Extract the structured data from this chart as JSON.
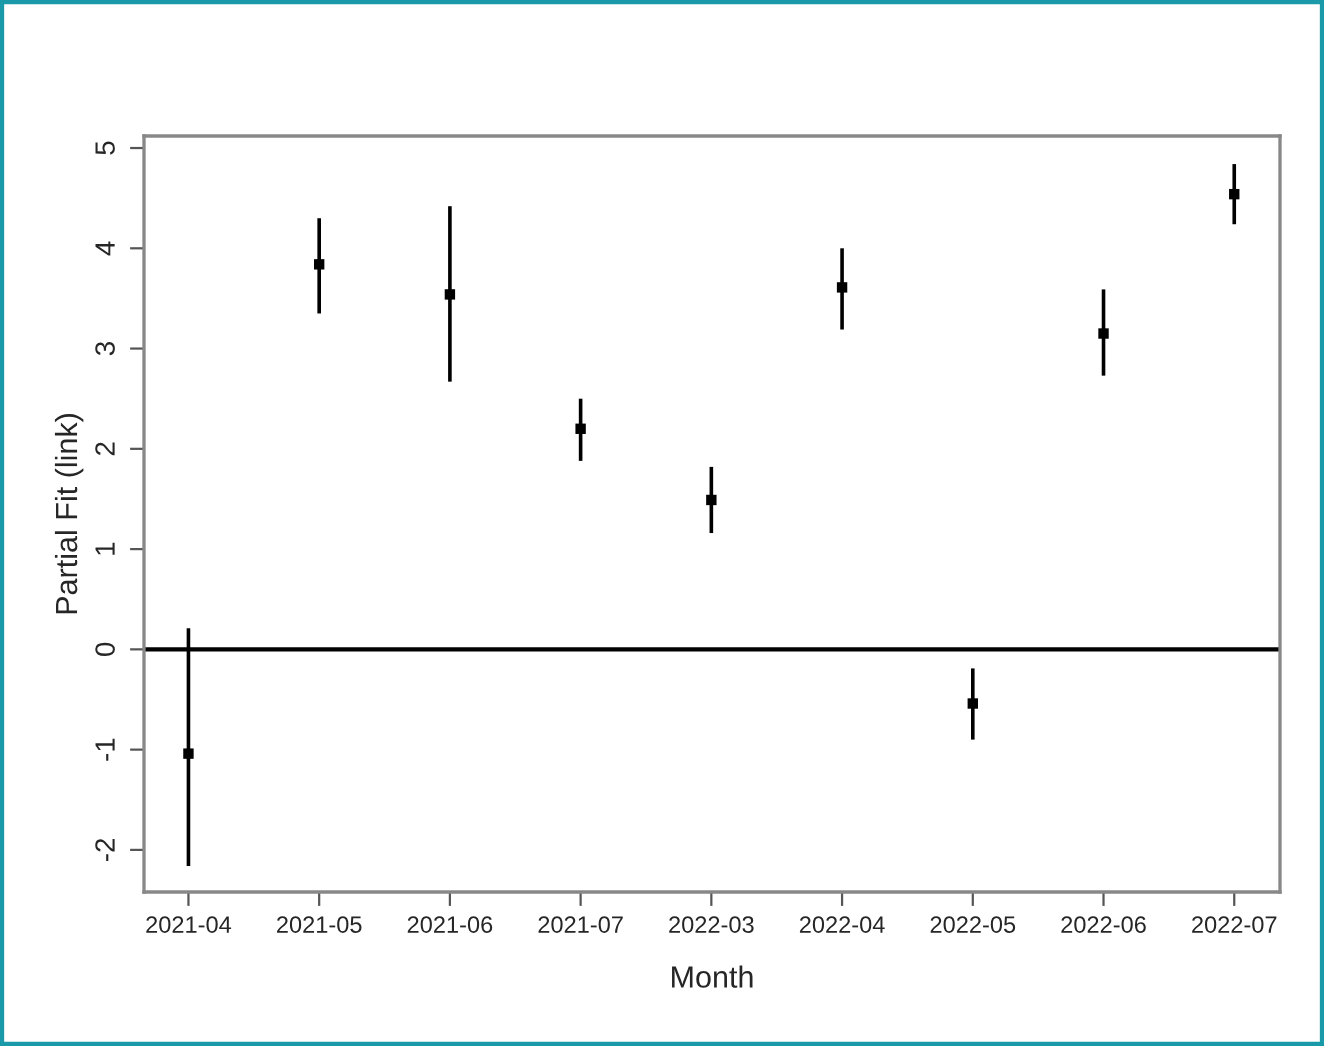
{
  "chart_data": {
    "type": "scatter",
    "xlabel": "Month",
    "ylabel": "Partial Fit (link)",
    "categories": [
      "2021-04",
      "2021-05",
      "2021-06",
      "2021-07",
      "2022-03",
      "2022-04",
      "2022-05",
      "2022-06",
      "2022-07"
    ],
    "values": [
      -1.04,
      3.84,
      3.54,
      2.2,
      1.49,
      3.61,
      -0.54,
      3.15,
      4.54
    ],
    "errors": [
      [
        -2.16,
        0.21
      ],
      [
        3.35,
        4.3
      ],
      [
        2.67,
        4.42
      ],
      [
        1.88,
        2.5
      ],
      [
        1.16,
        1.82
      ],
      [
        3.19,
        4.0
      ],
      [
        -0.9,
        -0.19
      ],
      [
        2.73,
        3.59
      ],
      [
        4.24,
        4.84
      ]
    ],
    "color": "#000000",
    "marker": "square",
    "ylim": [
      -2.42,
      5.12
    ],
    "yticks": [
      {
        "value": -2,
        "label": "-2"
      },
      {
        "value": -1,
        "label": "-1"
      },
      0,
      1,
      2,
      3,
      4,
      5
    ],
    "ref_lines": [
      {
        "axis": "y",
        "value": 0,
        "label": null,
        "color": "#000000",
        "line_style": "solid"
      }
    ],
    "grid": false
  }
}
